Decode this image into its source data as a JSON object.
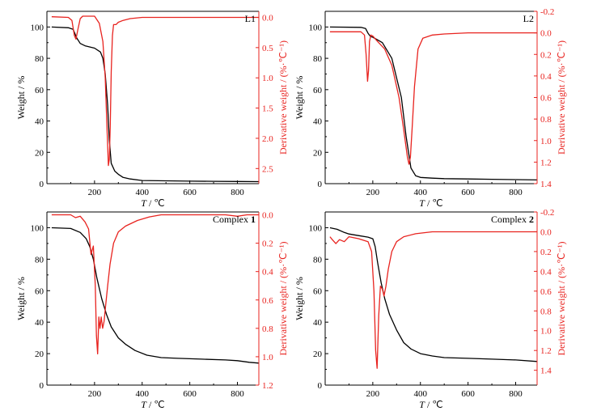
{
  "figure": {
    "colors": {
      "weight": "#000000",
      "derivative": "#e8231f",
      "axis": "#000000"
    }
  },
  "chart_data": [
    {
      "type": "line",
      "tag": "L1",
      "xlabel": "T / ℃",
      "ylabel": "Weight / %",
      "y2label": "Derivative weight / (%·℃⁻¹)",
      "xlim": [
        0,
        890
      ],
      "ylim": [
        0,
        110
      ],
      "y2lim": [
        2.75,
        -0.1
      ],
      "xticks": [
        200,
        400,
        600,
        800
      ],
      "yticks": [
        0,
        20,
        40,
        60,
        80,
        100
      ],
      "y2ticks": [
        "0.0",
        "0.5",
        "1.0",
        "1.5",
        "2.0",
        "2.5"
      ],
      "y2tickvals": [
        0,
        0.5,
        1.0,
        1.5,
        2.0,
        2.5
      ],
      "series": [
        {
          "axis": "left",
          "color": "#000000",
          "x": [
            20,
            90,
            110,
            125,
            140,
            160,
            200,
            225,
            235,
            245,
            255,
            262,
            270,
            285,
            300,
            320,
            350,
            400,
            500,
            600,
            700,
            800,
            890
          ],
          "y": [
            100,
            99.5,
            98.5,
            93,
            89.5,
            88,
            86.5,
            84,
            80,
            70,
            50,
            28,
            13,
            8,
            6,
            4,
            3,
            2,
            1.8,
            1.6,
            1.5,
            1.4,
            1.3
          ]
        },
        {
          "axis": "right",
          "color": "#e8231f",
          "x": [
            20,
            90,
            105,
            115,
            122,
            130,
            140,
            150,
            170,
            200,
            220,
            235,
            245,
            252,
            258,
            262,
            266,
            270,
            275,
            280,
            290,
            300,
            320,
            350,
            400,
            500,
            600,
            700,
            800,
            890
          ],
          "y": [
            -0.01,
            0.0,
            0.05,
            0.3,
            0.36,
            0.2,
            0.02,
            -0.02,
            -0.02,
            -0.02,
            0.1,
            0.4,
            1.0,
            1.8,
            2.45,
            2.35,
            1.8,
            0.9,
            0.3,
            0.12,
            0.12,
            0.08,
            0.05,
            0.02,
            0.0,
            0.0,
            0.0,
            0.0,
            0.0,
            0.0
          ]
        }
      ]
    },
    {
      "type": "line",
      "tag": "L2",
      "xlabel": "T / ℃",
      "ylabel": "Weight / %",
      "y2label": "Derivative weight / (%·℃⁻¹)",
      "xlim": [
        0,
        890
      ],
      "ylim": [
        0,
        110
      ],
      "y2lim": [
        1.4,
        -0.2
      ],
      "xticks": [
        200,
        400,
        600,
        800
      ],
      "yticks": [
        0,
        20,
        40,
        60,
        80,
        100
      ],
      "y2ticks": [
        "-0.2",
        "0.0",
        "0.2",
        "0.4",
        "0.6",
        "0.8",
        "1.0",
        "1.2",
        "1.4"
      ],
      "y2tickvals": [
        -0.2,
        0,
        0.2,
        0.4,
        0.6,
        0.8,
        1.0,
        1.2,
        1.4
      ],
      "series": [
        {
          "axis": "left",
          "color": "#000000",
          "x": [
            20,
            150,
            170,
            180,
            190,
            200,
            240,
            280,
            320,
            340,
            360,
            380,
            400,
            450,
            500,
            600,
            700,
            800,
            890
          ],
          "y": [
            100,
            99.8,
            99,
            96,
            94,
            93.5,
            90,
            80,
            55,
            30,
            10,
            5,
            4,
            3.5,
            3.2,
            3,
            2.8,
            2.6,
            2.4
          ]
        },
        {
          "axis": "right",
          "color": "#e8231f",
          "x": [
            20,
            150,
            165,
            172,
            178,
            182,
            186,
            192,
            200,
            220,
            250,
            280,
            310,
            330,
            345,
            352,
            358,
            365,
            375,
            390,
            410,
            450,
            500,
            600,
            700,
            800,
            890
          ],
          "y": [
            -0.01,
            -0.01,
            0.02,
            0.2,
            0.45,
            0.35,
            0.08,
            0.02,
            0.03,
            0.08,
            0.15,
            0.3,
            0.6,
            0.9,
            1.15,
            1.22,
            1.15,
            0.9,
            0.5,
            0.15,
            0.05,
            0.02,
            0.01,
            0.0,
            0.0,
            0.0,
            0.0
          ]
        }
      ]
    },
    {
      "type": "line",
      "tag": "Complex ",
      "tag_bold": "1",
      "xlabel": "T / ℃",
      "ylabel": "Weight / %",
      "y2label": "Derivative weight / (%·℃⁻¹)",
      "xlim": [
        0,
        890
      ],
      "ylim": [
        0,
        110
      ],
      "y2lim": [
        1.2,
        -0.02
      ],
      "xticks": [
        200,
        400,
        600,
        800
      ],
      "yticks": [
        0,
        20,
        40,
        60,
        80,
        100
      ],
      "y2ticks": [
        "0.0",
        "0.2",
        "0.4",
        "0.6",
        "0.8",
        "1.0",
        "1.2"
      ],
      "y2tickvals": [
        0,
        0.2,
        0.4,
        0.6,
        0.8,
        1.0,
        1.2
      ],
      "series": [
        {
          "axis": "left",
          "color": "#000000",
          "x": [
            20,
            100,
            140,
            165,
            180,
            195,
            210,
            230,
            250,
            270,
            300,
            330,
            370,
            420,
            480,
            550,
            650,
            750,
            800,
            850,
            890
          ],
          "y": [
            100,
            99.5,
            97,
            93,
            88,
            80,
            68,
            55,
            45,
            37,
            30,
            26,
            22,
            19,
            17.5,
            17,
            16.5,
            16,
            15.5,
            14.5,
            14
          ]
        },
        {
          "axis": "right",
          "color": "#e8231f",
          "x": [
            20,
            100,
            120,
            140,
            160,
            175,
            185,
            195,
            203,
            208,
            213,
            218,
            223,
            228,
            234,
            240,
            246,
            255,
            265,
            280,
            300,
            330,
            380,
            430,
            480,
            550,
            650,
            750,
            800,
            840,
            890
          ],
          "y": [
            0.0,
            0.0,
            0.02,
            0.01,
            0.05,
            0.1,
            0.28,
            0.22,
            0.5,
            0.85,
            0.98,
            0.72,
            0.8,
            0.72,
            0.8,
            0.75,
            0.65,
            0.5,
            0.35,
            0.2,
            0.12,
            0.08,
            0.04,
            0.015,
            0.0,
            0.0,
            0.0,
            0.0,
            0.01,
            0.0,
            0.0
          ]
        }
      ]
    },
    {
      "type": "line",
      "tag": "Complex ",
      "tag_bold": "2",
      "xlabel": "T / ℃",
      "ylabel": "Weight / %",
      "y2label": "Derivative weight / (%·℃⁻¹)",
      "xlim": [
        0,
        890
      ],
      "ylim": [
        0,
        110
      ],
      "y2lim": [
        1.55,
        -0.2
      ],
      "xticks": [
        200,
        400,
        600,
        800
      ],
      "yticks": [
        0,
        20,
        40,
        60,
        80,
        100
      ],
      "y2ticks": [
        "-0.2",
        "0.0",
        "0.2",
        "0.4",
        "0.6",
        "0.8",
        "1.0",
        "1.2",
        "1.4"
      ],
      "y2tickvals": [
        -0.2,
        0,
        0.2,
        0.4,
        0.6,
        0.8,
        1.0,
        1.2,
        1.4
      ],
      "series": [
        {
          "axis": "left",
          "color": "#000000",
          "x": [
            20,
            50,
            80,
            100,
            140,
            180,
            200,
            210,
            220,
            235,
            250,
            270,
            300,
            330,
            360,
            400,
            450,
            500,
            600,
            700,
            800,
            890
          ],
          "y": [
            100,
            99,
            97,
            96,
            95,
            94,
            93,
            88,
            78,
            65,
            55,
            45,
            35,
            27,
            23,
            20,
            18.5,
            17.5,
            17,
            16.5,
            16,
            15
          ]
        },
        {
          "axis": "right",
          "color": "#e8231f",
          "x": [
            20,
            30,
            45,
            60,
            80,
            100,
            140,
            180,
            195,
            205,
            212,
            218,
            225,
            232,
            240,
            247,
            255,
            265,
            280,
            300,
            330,
            380,
            450,
            550,
            650,
            750,
            850,
            890
          ],
          "y": [
            0.05,
            0.08,
            0.12,
            0.08,
            0.1,
            0.05,
            0.07,
            0.1,
            0.2,
            0.6,
            1.2,
            1.38,
            0.85,
            0.55,
            0.58,
            0.65,
            0.55,
            0.38,
            0.2,
            0.1,
            0.05,
            0.02,
            0.0,
            0.0,
            0.0,
            0.0,
            0.0,
            0.0
          ]
        }
      ]
    }
  ]
}
